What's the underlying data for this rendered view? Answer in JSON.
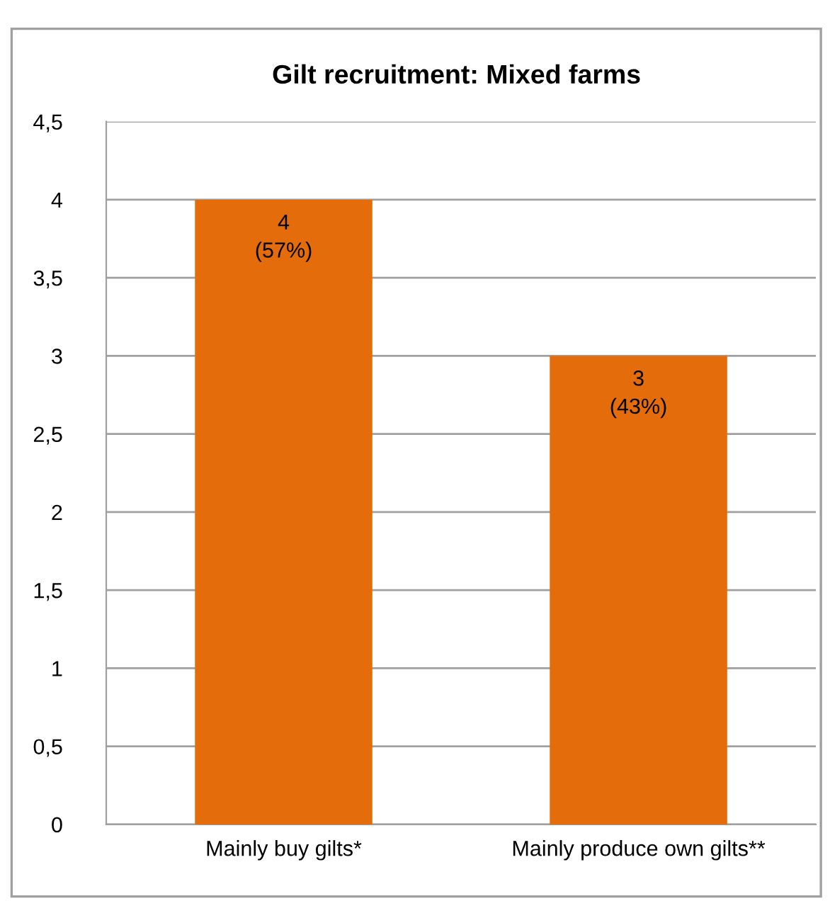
{
  "chart_data": {
    "type": "bar",
    "title": "Gilt recruitment: Mixed farms",
    "categories": [
      "Mainly buy gilts*",
      "Mainly produce own gilts**"
    ],
    "values": [
      4,
      3
    ],
    "color": "#e46c0a",
    "value_labels": [
      "4\n(57%)",
      "3\n(43%)"
    ],
    "ylim": [
      0,
      4.5
    ],
    "yticks": [
      0,
      {
        "value": 0.5,
        "label": "0,5"
      },
      1,
      {
        "value": 1.5,
        "label": "1,5"
      },
      2,
      {
        "value": 2.5,
        "label": "2,5"
      },
      3,
      {
        "value": 3.5,
        "label": "3,5"
      },
      4,
      {
        "value": 4.5,
        "label": "4,5"
      }
    ],
    "grid": "y",
    "legend": false
  }
}
